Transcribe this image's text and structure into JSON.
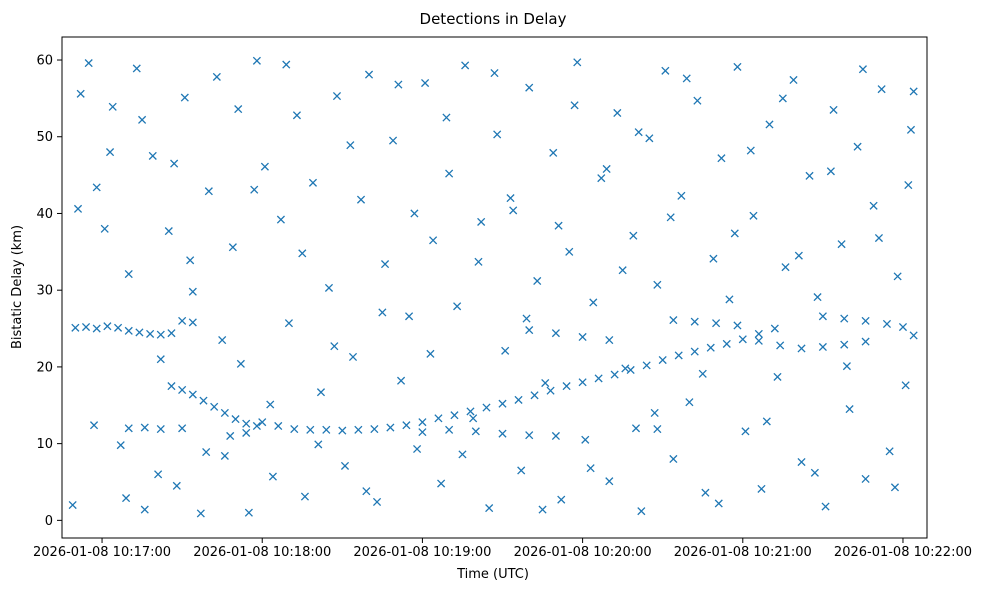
{
  "chart_data": {
    "type": "scatter",
    "title": "Detections in Delay",
    "xlabel": "Time (UTC)",
    "ylabel": "Bistatic Delay (km)",
    "x_ticks": [
      "2026-01-08 10:17:00",
      "2026-01-08 10:18:00",
      "2026-01-08 10:19:00",
      "2026-01-08 10:20:00",
      "2026-01-08 10:21:00",
      "2026-01-08 10:22:00"
    ],
    "y_ticks": [
      "0",
      "10",
      "20",
      "30",
      "40",
      "50",
      "60"
    ],
    "xlim": [
      "2026-01-08 10:16:45",
      "2026-01-08 10:22:09"
    ],
    "ylim": [
      -2.3,
      63
    ],
    "marker": "x",
    "color": "#1f77b4",
    "grid": false,
    "series": [
      {
        "points": [
          [
            "10:16:50",
            25.1
          ],
          [
            "10:16:54",
            25.2
          ],
          [
            "10:16:58",
            25.0
          ],
          [
            "10:17:02",
            25.3
          ],
          [
            "10:17:06",
            25.1
          ],
          [
            "10:17:10",
            24.7
          ],
          [
            "10:17:14",
            24.5
          ],
          [
            "10:17:18",
            24.3
          ],
          [
            "10:17:22",
            24.2
          ],
          [
            "10:17:26",
            24.4
          ],
          [
            "10:17:30",
            26.0
          ],
          [
            "10:17:34",
            25.8
          ],
          [
            "10:17:10",
            12.0
          ],
          [
            "10:17:16",
            12.1
          ],
          [
            "10:17:22",
            11.9
          ],
          [
            "10:17:30",
            12.0
          ],
          [
            "10:17:26",
            17.5
          ],
          [
            "10:17:30",
            17.0
          ],
          [
            "10:17:34",
            16.4
          ],
          [
            "10:17:38",
            15.6
          ],
          [
            "10:17:42",
            14.8
          ],
          [
            "10:17:46",
            14.0
          ],
          [
            "10:17:50",
            13.2
          ],
          [
            "10:17:54",
            12.6
          ],
          [
            "10:17:58",
            12.3
          ],
          [
            "10:17:48",
            11.0
          ],
          [
            "10:17:54",
            11.4
          ],
          [
            "10:18:00",
            12.8
          ],
          [
            "10:18:06",
            12.3
          ],
          [
            "10:18:12",
            11.9
          ],
          [
            "10:18:18",
            11.8
          ],
          [
            "10:18:24",
            11.8
          ],
          [
            "10:18:30",
            11.7
          ],
          [
            "10:18:36",
            11.8
          ],
          [
            "10:18:42",
            11.9
          ],
          [
            "10:18:48",
            12.1
          ],
          [
            "10:18:54",
            12.4
          ],
          [
            "10:19:00",
            12.8
          ],
          [
            "10:19:06",
            13.3
          ],
          [
            "10:19:12",
            13.7
          ],
          [
            "10:19:18",
            14.2
          ],
          [
            "10:19:24",
            14.7
          ],
          [
            "10:19:30",
            15.2
          ],
          [
            "10:19:36",
            15.7
          ],
          [
            "10:19:42",
            16.3
          ],
          [
            "10:19:48",
            16.9
          ],
          [
            "10:19:54",
            17.5
          ],
          [
            "10:20:00",
            18.0
          ],
          [
            "10:20:06",
            18.5
          ],
          [
            "10:20:12",
            19.0
          ],
          [
            "10:20:18",
            19.6
          ],
          [
            "10:20:24",
            20.2
          ],
          [
            "10:20:30",
            20.9
          ],
          [
            "10:20:36",
            21.5
          ],
          [
            "10:20:42",
            22.0
          ],
          [
            "10:20:48",
            22.5
          ],
          [
            "10:20:54",
            23.0
          ],
          [
            "10:21:00",
            23.6
          ],
          [
            "10:21:06",
            24.3
          ],
          [
            "10:21:12",
            25.0
          ],
          [
            "10:19:00",
            11.5
          ],
          [
            "10:19:10",
            11.8
          ],
          [
            "10:19:20",
            11.6
          ],
          [
            "10:19:30",
            11.3
          ],
          [
            "10:19:40",
            11.1
          ],
          [
            "10:19:50",
            11.0
          ],
          [
            "10:19:40",
            24.8
          ],
          [
            "10:19:50",
            24.4
          ],
          [
            "10:20:00",
            23.9
          ],
          [
            "10:20:10",
            23.5
          ],
          [
            "10:20:20",
            12.0
          ],
          [
            "10:20:28",
            11.9
          ],
          [
            "10:20:34",
            26.1
          ],
          [
            "10:20:42",
            25.9
          ],
          [
            "10:20:50",
            25.7
          ],
          [
            "10:20:58",
            25.4
          ],
          [
            "10:21:06",
            23.4
          ],
          [
            "10:21:14",
            22.8
          ],
          [
            "10:21:22",
            22.4
          ],
          [
            "10:21:30",
            22.6
          ],
          [
            "10:21:38",
            22.9
          ],
          [
            "10:21:46",
            23.3
          ],
          [
            "10:21:30",
            26.6
          ],
          [
            "10:21:38",
            26.3
          ],
          [
            "10:21:46",
            26.0
          ],
          [
            "10:21:54",
            25.6
          ],
          [
            "10:22:00",
            25.2
          ],
          [
            "10:16:49",
            2.0
          ],
          [
            "10:16:52",
            55.6
          ],
          [
            "10:16:55",
            59.6
          ],
          [
            "10:16:58",
            43.4
          ],
          [
            "10:17:01",
            38.0
          ],
          [
            "10:17:04",
            53.9
          ],
          [
            "10:17:07",
            9.8
          ],
          [
            "10:17:10",
            32.1
          ],
          [
            "10:17:13",
            58.9
          ],
          [
            "10:17:16",
            1.4
          ],
          [
            "10:17:19",
            47.5
          ],
          [
            "10:17:22",
            21.0
          ],
          [
            "10:17:25",
            37.7
          ],
          [
            "10:17:28",
            4.5
          ],
          [
            "10:17:31",
            55.1
          ],
          [
            "10:17:34",
            29.8
          ],
          [
            "10:17:37",
            0.9
          ],
          [
            "10:17:40",
            42.9
          ],
          [
            "10:17:43",
            57.8
          ],
          [
            "10:17:46",
            8.4
          ],
          [
            "10:17:49",
            35.6
          ],
          [
            "10:17:52",
            20.4
          ],
          [
            "10:17:55",
            1.0
          ],
          [
            "10:17:58",
            59.9
          ],
          [
            "10:18:01",
            46.1
          ],
          [
            "10:18:04",
            5.7
          ],
          [
            "10:18:07",
            39.2
          ],
          [
            "10:18:10",
            25.7
          ],
          [
            "10:18:13",
            52.8
          ],
          [
            "10:18:16",
            3.1
          ],
          [
            "10:18:19",
            44.0
          ],
          [
            "10:18:22",
            16.7
          ],
          [
            "10:18:25",
            30.3
          ],
          [
            "10:18:28",
            55.3
          ],
          [
            "10:18:31",
            7.1
          ],
          [
            "10:18:34",
            21.3
          ],
          [
            "10:18:37",
            41.8
          ],
          [
            "10:18:40",
            58.1
          ],
          [
            "10:18:43",
            2.4
          ],
          [
            "10:18:46",
            33.4
          ],
          [
            "10:18:49",
            49.5
          ],
          [
            "10:18:52",
            18.2
          ],
          [
            "10:18:55",
            26.6
          ],
          [
            "10:18:58",
            9.3
          ],
          [
            "10:19:01",
            57.0
          ],
          [
            "10:19:04",
            36.5
          ],
          [
            "10:19:07",
            4.8
          ],
          [
            "10:19:10",
            45.2
          ],
          [
            "10:19:13",
            27.9
          ],
          [
            "10:19:16",
            59.3
          ],
          [
            "10:19:19",
            13.3
          ],
          [
            "10:19:22",
            38.9
          ],
          [
            "10:19:25",
            1.6
          ],
          [
            "10:19:28",
            50.3
          ],
          [
            "10:19:31",
            22.1
          ],
          [
            "10:19:34",
            40.4
          ],
          [
            "10:19:37",
            6.5
          ],
          [
            "10:19:40",
            56.4
          ],
          [
            "10:19:43",
            31.2
          ],
          [
            "10:19:46",
            17.9
          ],
          [
            "10:19:49",
            47.9
          ],
          [
            "10:19:52",
            2.7
          ],
          [
            "10:19:55",
            35.0
          ],
          [
            "10:19:58",
            59.7
          ],
          [
            "10:20:01",
            10.5
          ],
          [
            "10:20:04",
            28.4
          ],
          [
            "10:20:07",
            44.6
          ],
          [
            "10:20:10",
            5.1
          ],
          [
            "10:20:13",
            53.1
          ],
          [
            "10:20:16",
            19.8
          ],
          [
            "10:20:19",
            37.1
          ],
          [
            "10:20:22",
            1.2
          ],
          [
            "10:20:25",
            49.8
          ],
          [
            "10:20:28",
            30.7
          ],
          [
            "10:20:31",
            58.6
          ],
          [
            "10:20:34",
            8.0
          ],
          [
            "10:20:37",
            42.3
          ],
          [
            "10:20:40",
            15.4
          ],
          [
            "10:20:43",
            54.7
          ],
          [
            "10:20:46",
            3.6
          ],
          [
            "10:20:49",
            34.1
          ],
          [
            "10:20:52",
            47.2
          ],
          [
            "10:20:55",
            28.8
          ],
          [
            "10:20:58",
            59.1
          ],
          [
            "10:21:01",
            11.6
          ],
          [
            "10:21:04",
            39.7
          ],
          [
            "10:21:07",
            4.1
          ],
          [
            "10:21:10",
            51.6
          ],
          [
            "10:21:13",
            18.7
          ],
          [
            "10:21:16",
            33.0
          ],
          [
            "10:21:19",
            57.4
          ],
          [
            "10:21:22",
            7.6
          ],
          [
            "10:21:25",
            44.9
          ],
          [
            "10:21:28",
            29.1
          ],
          [
            "10:21:31",
            1.8
          ],
          [
            "10:21:34",
            53.5
          ],
          [
            "10:21:37",
            36.0
          ],
          [
            "10:21:40",
            14.5
          ],
          [
            "10:21:43",
            48.7
          ],
          [
            "10:21:46",
            5.4
          ],
          [
            "10:21:49",
            41.0
          ],
          [
            "10:21:52",
            56.2
          ],
          [
            "10:21:55",
            9.0
          ],
          [
            "10:21:58",
            31.8
          ],
          [
            "10:22:01",
            17.6
          ],
          [
            "10:22:03",
            50.9
          ],
          [
            "10:22:04",
            55.9
          ],
          [
            "10:22:04",
            24.1
          ],
          [
            "10:16:51",
            40.6
          ],
          [
            "10:16:57",
            12.4
          ],
          [
            "10:17:03",
            48.0
          ],
          [
            "10:17:09",
            2.9
          ],
          [
            "10:17:15",
            52.2
          ],
          [
            "10:17:21",
            6.0
          ],
          [
            "10:17:27",
            46.5
          ],
          [
            "10:17:33",
            33.9
          ],
          [
            "10:17:39",
            8.9
          ],
          [
            "10:17:45",
            23.5
          ],
          [
            "10:17:51",
            53.6
          ],
          [
            "10:17:57",
            43.1
          ],
          [
            "10:18:03",
            15.1
          ],
          [
            "10:18:09",
            59.4
          ],
          [
            "10:18:15",
            34.8
          ],
          [
            "10:18:21",
            9.9
          ],
          [
            "10:18:27",
            22.7
          ],
          [
            "10:18:33",
            48.9
          ],
          [
            "10:18:39",
            3.8
          ],
          [
            "10:18:45",
            27.1
          ],
          [
            "10:18:51",
            56.8
          ],
          [
            "10:18:57",
            40.0
          ],
          [
            "10:19:03",
            21.7
          ],
          [
            "10:19:09",
            52.5
          ],
          [
            "10:19:15",
            8.6
          ],
          [
            "10:19:21",
            33.7
          ],
          [
            "10:19:27",
            58.3
          ],
          [
            "10:19:33",
            42.0
          ],
          [
            "10:19:39",
            26.3
          ],
          [
            "10:19:45",
            1.4
          ],
          [
            "10:19:51",
            38.4
          ],
          [
            "10:19:57",
            54.1
          ],
          [
            "10:20:03",
            6.8
          ],
          [
            "10:20:09",
            45.8
          ],
          [
            "10:20:15",
            32.6
          ],
          [
            "10:20:21",
            50.6
          ],
          [
            "10:20:27",
            14.0
          ],
          [
            "10:20:33",
            39.5
          ],
          [
            "10:20:39",
            57.6
          ],
          [
            "10:20:45",
            19.1
          ],
          [
            "10:20:51",
            2.2
          ],
          [
            "10:20:57",
            37.4
          ],
          [
            "10:21:03",
            48.2
          ],
          [
            "10:21:09",
            12.9
          ],
          [
            "10:21:15",
            55.0
          ],
          [
            "10:21:21",
            34.5
          ],
          [
            "10:21:27",
            6.2
          ],
          [
            "10:21:33",
            45.5
          ],
          [
            "10:21:39",
            20.1
          ],
          [
            "10:21:45",
            58.8
          ],
          [
            "10:21:51",
            36.8
          ],
          [
            "10:21:57",
            4.3
          ],
          [
            "10:22:02",
            43.7
          ]
        ]
      }
    ]
  }
}
